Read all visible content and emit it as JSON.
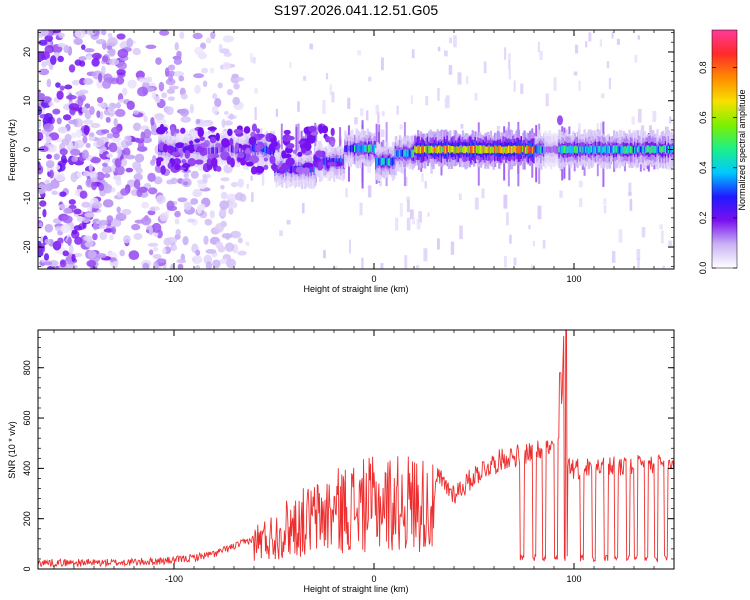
{
  "title": "S197.2026.041.12.51.G05",
  "chart_data": [
    {
      "type": "heatmap",
      "xlabel": "Height of straight line (km)",
      "ylabel": "Frequency (Hz)",
      "xlim": [
        -168,
        150
      ],
      "ylim": [
        -24.5,
        24.5
      ],
      "xticks": [
        -100,
        0,
        100
      ],
      "yticks": [
        -20,
        -10,
        0,
        10,
        20
      ],
      "colorbar": {
        "label": "Normalized spectral amplitude",
        "range": [
          0.0,
          0.95
        ],
        "ticks": [
          0.0,
          0.2,
          0.4,
          0.6,
          0.8
        ],
        "colors": [
          "#ffffff",
          "#c9b2f5",
          "#7a10ef",
          "#1f1aff",
          "#00c8ff",
          "#1df089",
          "#7cf000",
          "#f8e000",
          "#ff8a00",
          "#ff2a2a",
          "#ff3a9a"
        ]
      },
      "features": {
        "noise_region_x": [
          -168,
          -65
        ],
        "signal_band_freq_hz": 0,
        "signal_start_x": -108,
        "strong_segment_x": [
          20,
          80
        ]
      }
    },
    {
      "type": "line",
      "xlabel": "Height of straight line (km)",
      "ylabel": "SNR (10 * v/v)",
      "xlim": [
        -168,
        150
      ],
      "ylim": [
        0,
        950
      ],
      "xticks": [
        -100,
        0,
        100
      ],
      "yticks": [
        0,
        200,
        400,
        600,
        800
      ],
      "color": "#ee2e2e",
      "series": [
        {
          "name": "SNR",
          "x": [
            -168,
            -150,
            -130,
            -110,
            -100,
            -90,
            -80,
            -70,
            -60,
            -50,
            -45,
            -40,
            -35,
            -30,
            -25,
            -20,
            -15,
            -10,
            -5,
            0,
            5,
            10,
            15,
            20,
            25,
            30,
            32,
            35,
            40,
            45,
            50,
            55,
            60,
            65,
            70,
            75,
            80,
            85,
            90,
            93,
            95,
            96,
            97,
            100,
            110,
            120,
            130,
            140,
            150
          ],
          "y": [
            25,
            25,
            25,
            30,
            35,
            45,
            60,
            90,
            120,
            150,
            180,
            200,
            215,
            230,
            245,
            260,
            275,
            285,
            290,
            295,
            300,
            300,
            302,
            305,
            300,
            270,
            370,
            335,
            300,
            330,
            370,
            400,
            420,
            440,
            450,
            460,
            470,
            480,
            480,
            500,
            920,
            560,
            420,
            400,
            405,
            410,
            410,
            410,
            415
          ]
        }
      ],
      "dropouts_x": [
        74,
        80,
        85,
        91,
        96,
        104,
        110,
        116,
        121,
        127,
        131,
        136,
        141,
        146
      ]
    }
  ]
}
